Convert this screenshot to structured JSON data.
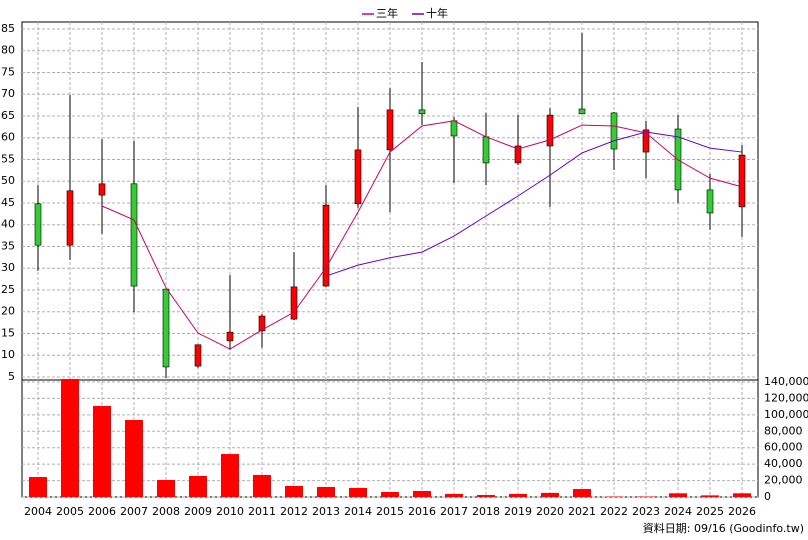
{
  "chart_data": {
    "type": "candlestick",
    "categories": [
      "2004",
      "2005",
      "2006",
      "2007",
      "2008",
      "2009",
      "2010",
      "2011",
      "2012",
      "2013",
      "2014",
      "2015",
      "2016",
      "2017",
      "2018",
      "2019",
      "2020",
      "2021",
      "2022",
      "2023",
      "2024",
      "2025",
      "2026"
    ],
    "open": [
      44.8,
      35.3,
      46.8,
      49.4,
      25.2,
      7.5,
      13.3,
      15.6,
      18.3,
      25.9,
      44.8,
      57.2,
      66.4,
      63.9,
      60.2,
      54.2,
      58.1,
      66.6,
      65.7,
      56.7,
      62.0,
      48.0,
      44.1
    ],
    "high": [
      49.1,
      69.8,
      59.7,
      59.3,
      25.2,
      12.4,
      28.4,
      19.5,
      33.7,
      49.1,
      67.1,
      71.4,
      77.4,
      64.8,
      65.7,
      65.2,
      66.8,
      84.1,
      65.9,
      63.9,
      65.2,
      51.7,
      58.3
    ],
    "low": [
      29.4,
      31.9,
      37.9,
      19.9,
      4.8,
      7.1,
      11.2,
      11.7,
      18.1,
      25.7,
      43.9,
      42.9,
      62.9,
      49.6,
      49.1,
      53.7,
      44.1,
      65.5,
      52.6,
      50.7,
      45.0,
      38.8,
      37.2
    ],
    "close": [
      35.3,
      47.8,
      49.4,
      25.9,
      7.3,
      12.4,
      15.3,
      19.0,
      25.7,
      44.5,
      57.2,
      66.4,
      65.5,
      60.4,
      54.2,
      58.1,
      65.2,
      65.5,
      57.4,
      61.8,
      48.0,
      42.7,
      56.0
    ],
    "up_color": "#ff0000",
    "down_color": "#33cc33",
    "series": [
      {
        "name": "三年",
        "color": "#cc0066",
        "values": [
          null,
          null,
          44.3,
          41.1,
          25.5,
          15.1,
          11.4,
          15.8,
          19.9,
          30.1,
          42.9,
          56.7,
          62.7,
          63.9,
          60.2,
          57.4,
          59.5,
          62.9,
          62.7,
          61.1,
          54.9,
          50.7,
          48.7
        ]
      },
      {
        "name": "十年",
        "color": "#6600cc",
        "values": [
          null,
          null,
          null,
          null,
          null,
          null,
          null,
          null,
          null,
          28.2,
          30.7,
          32.4,
          33.7,
          37.4,
          42.0,
          46.6,
          51.4,
          56.5,
          59.3,
          61.3,
          60.2,
          57.6,
          56.7
        ]
      }
    ],
    "ylim": [
      4.3,
      86.6
    ],
    "yticks": [
      5,
      10,
      15,
      20,
      25,
      30,
      35,
      40,
      45,
      50,
      55,
      60,
      65,
      70,
      75,
      80,
      85
    ],
    "grid": true,
    "volume": {
      "type": "bar",
      "color": "#ff0000",
      "values": [
        24300,
        143600,
        110800,
        93700,
        20700,
        25600,
        52300,
        26800,
        13400,
        12200,
        11000,
        6100,
        7300,
        3700,
        2400,
        3700,
        5000,
        9700,
        600,
        600,
        4500,
        2000,
        4500
      ],
      "ylim": [
        0,
        142400
      ],
      "yticks": [
        {
          "value": 0,
          "label": "0"
        },
        {
          "value": 20000,
          "label": "20,000"
        },
        {
          "value": 40000,
          "label": "40,000"
        },
        {
          "value": 60000,
          "label": "60,000"
        },
        {
          "value": 80000,
          "label": "80,000"
        },
        {
          "value": 100000,
          "label": "100,000"
        },
        {
          "value": 120000,
          "label": "120,000"
        },
        {
          "value": 140000,
          "label": "140,000"
        }
      ]
    },
    "footnote": "資料日期: 09/16 (Goodinfo.tw)"
  }
}
